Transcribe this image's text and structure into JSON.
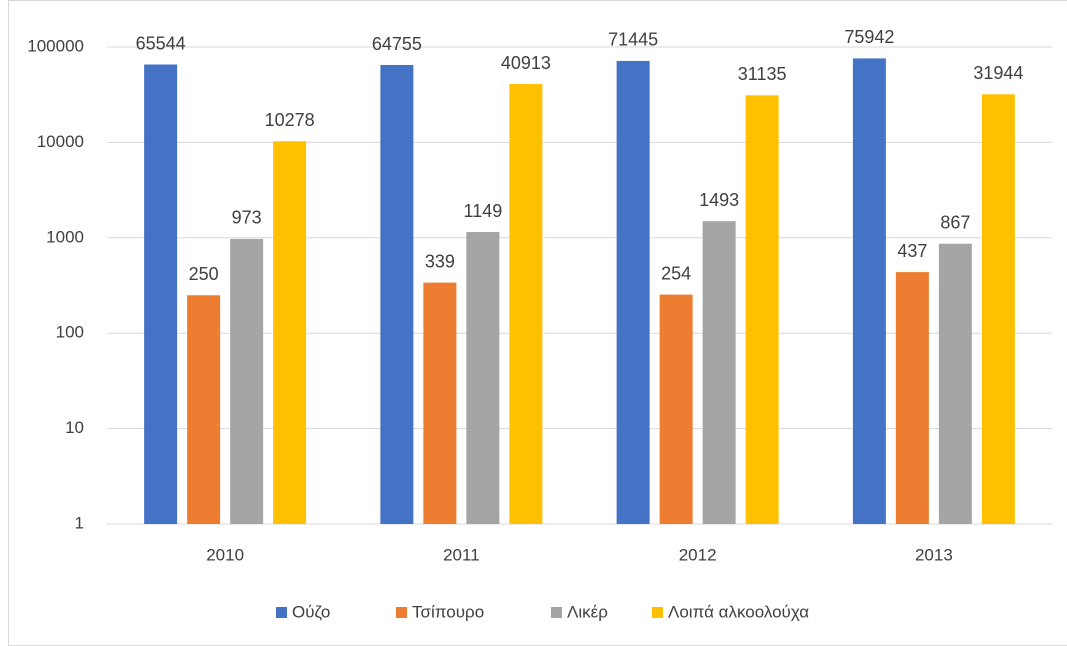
{
  "chart_data": {
    "type": "bar",
    "log_scale": true,
    "grid": true,
    "legend": "bottom",
    "categories": [
      "2010",
      "2011",
      "2012",
      "2013"
    ],
    "series": [
      {
        "name": "Ούζο",
        "color": "#4472c4",
        "values": [
          65544,
          64755,
          71445,
          75942
        ]
      },
      {
        "name": "Τσίπουρο",
        "color": "#ed7d31",
        "values": [
          250,
          339,
          254,
          437
        ]
      },
      {
        "name": "Λικέρ",
        "color": "#a5a5a5",
        "values": [
          973,
          1149,
          1493,
          867
        ]
      },
      {
        "name": "Λοιπά αλκοολούχα",
        "color": "#ffc000",
        "values": [
          10278,
          40913,
          31135,
          31944
        ]
      }
    ],
    "ylim": [
      1,
      100000
    ],
    "yticks": [
      1,
      10,
      100,
      1000,
      10000,
      100000
    ]
  }
}
